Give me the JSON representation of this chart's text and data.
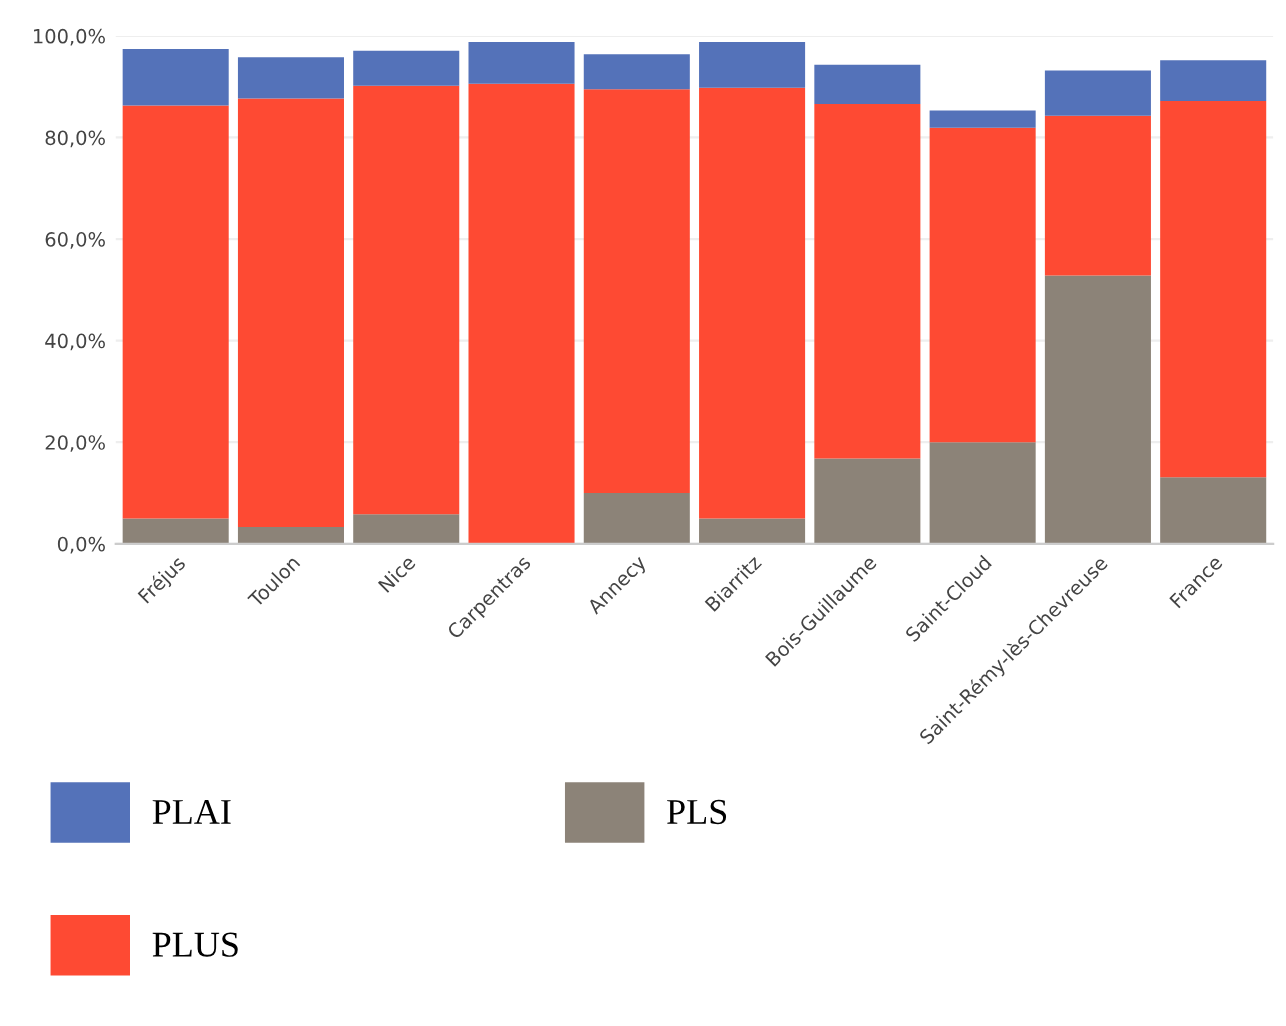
{
  "chart_data": {
    "type": "bar",
    "stacked": true,
    "categories": [
      "Fréjus",
      "Toulon",
      "Nice",
      "Carpentras",
      "Annecy",
      "Biarritz",
      "Bois-Guillaume",
      "Saint-Cloud",
      "Saint-Rémy-lès-Chevreuse",
      "France"
    ],
    "series": [
      {
        "name": "PLS",
        "color": "#8c8378",
        "values": [
          5,
          3.3,
          5.8,
          0,
          10,
          5,
          16.8,
          20,
          52.8,
          13.1
        ]
      },
      {
        "name": "PLUS",
        "color": "#fe4a33",
        "values": [
          81.3,
          84.4,
          84.4,
          90.6,
          79.5,
          84.8,
          69.8,
          61.9,
          31.5,
          74.1
        ]
      },
      {
        "name": "PLAI",
        "color": "#5472b9",
        "values": [
          11.1,
          8.1,
          6.9,
          8.2,
          6.9,
          9,
          7.7,
          3.4,
          8.9,
          8
        ]
      }
    ],
    "ylim": [
      0,
      100
    ],
    "yticks": [
      {
        "value": 0,
        "label": "0,0%"
      },
      {
        "value": 20,
        "label": "20,0%"
      },
      {
        "value": 40,
        "label": "40,0%"
      },
      {
        "value": 60,
        "label": "60,0%"
      },
      {
        "value": 80,
        "label": "80,0%"
      },
      {
        "value": 100,
        "label": "100,0%"
      }
    ],
    "grid": "y",
    "legend": "bottom left"
  }
}
